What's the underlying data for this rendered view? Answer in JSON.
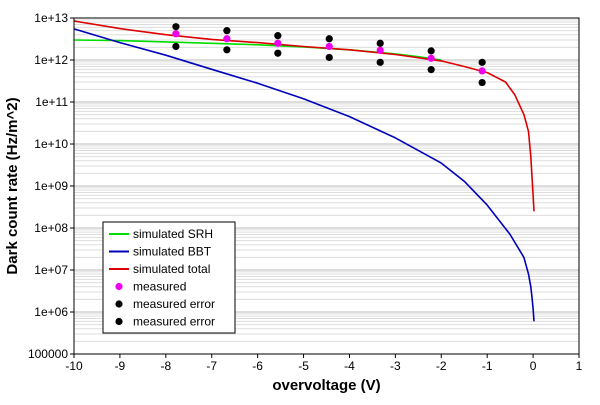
{
  "chart_data": {
    "type": "line",
    "title": "",
    "xlabel": "overvoltage (V)",
    "ylabel": "Dark count rate (Hz/m^2)",
    "xlim": [
      -10,
      1
    ],
    "ylim": [
      100000,
      10000000000000
    ],
    "yscale": "log",
    "grid": true,
    "legend_position": "bottom-left",
    "x_ticks": [
      {
        "value": -10,
        "label": "-10"
      },
      {
        "value": -9,
        "label": "-9"
      },
      {
        "value": -8,
        "label": "-8"
      },
      {
        "value": -7,
        "label": "-7"
      },
      {
        "value": -6,
        "label": "-6"
      },
      {
        "value": -5,
        "label": "-5"
      },
      {
        "value": -4,
        "label": "-4"
      },
      {
        "value": -3,
        "label": "-3"
      },
      {
        "value": -2,
        "label": "-2"
      },
      {
        "value": -1,
        "label": "-1"
      },
      {
        "value": 0,
        "label": "0"
      },
      {
        "value": 1,
        "label": "1"
      }
    ],
    "y_ticks": [
      {
        "value": 100000,
        "label": "100000"
      },
      {
        "value": 1000000,
        "label": "1e+06"
      },
      {
        "value": 10000000,
        "label": "1e+07"
      },
      {
        "value": 100000000,
        "label": "1e+08"
      },
      {
        "value": 1000000000,
        "label": "1e+09"
      },
      {
        "value": 10000000000,
        "label": "1e+10"
      },
      {
        "value": 100000000000,
        "label": "1e+11"
      },
      {
        "value": 1000000000000,
        "label": "1e+12"
      },
      {
        "value": 10000000000000,
        "label": "1e+13"
      }
    ],
    "series": [
      {
        "name": "simulated SRH",
        "kind": "line",
        "color": "#00dd00",
        "x": [
          -10,
          -9,
          -8,
          -7,
          -6,
          -5,
          -4,
          -3,
          -2.5,
          -2
        ],
        "y": [
          3000000000000.0,
          2900000000000.0,
          2700000000000.0,
          2500000000000.0,
          2300000000000.0,
          2050000000000.0,
          1750000000000.0,
          1400000000000.0,
          1200000000000.0,
          1000000000000.0
        ]
      },
      {
        "name": "simulated BBT",
        "kind": "line",
        "color": "#0000bb",
        "x": [
          -10,
          -9,
          -8,
          -7,
          -6,
          -5,
          -4,
          -3,
          -2,
          -1.5,
          -1,
          -0.5,
          -0.2,
          -0.1,
          -0.05,
          -0.02,
          0,
          0.02
        ],
        "y": [
          5500000000000.0,
          2600000000000.0,
          1300000000000.0,
          600000000000.0,
          280000000000.0,
          120000000000.0,
          45000000000.0,
          14000000000.0,
          3500000000.0,
          1300000000.0,
          350000000.0,
          70000000.0,
          20000000.0,
          8000000.0,
          4000000.0,
          2000000.0,
          1200000.0,
          600000.0
        ]
      },
      {
        "name": "simulated total",
        "kind": "line",
        "color": "#dd0000",
        "x": [
          -10,
          -9,
          -8,
          -7,
          -6,
          -5,
          -4,
          -3,
          -2,
          -1.5,
          -1,
          -0.6,
          -0.4,
          -0.2,
          -0.1,
          -0.05,
          0,
          0.02
        ],
        "y": [
          8500000000000.0,
          5600000000000.0,
          4000000000000.0,
          3100000000000.0,
          2600000000000.0,
          2100000000000.0,
          1750000000000.0,
          1350000000000.0,
          950000000000.0,
          700000000000.0,
          500000000000.0,
          300000000000.0,
          150000000000.0,
          50000000000.0,
          20000000000.0,
          5000000000.0,
          600000000.0,
          250000000.0
        ]
      },
      {
        "name": "measured",
        "kind": "scatter",
        "color": "#ee00ee",
        "x": [
          -7.78,
          -6.67,
          -5.56,
          -4.44,
          -3.33,
          -2.22,
          -1.11
        ],
        "y": [
          4200000000000.0,
          3200000000000.0,
          2500000000000.0,
          2100000000000.0,
          1700000000000.0,
          1100000000000.0,
          550000000000.0
        ]
      },
      {
        "name": "measured error",
        "kind": "scatter",
        "color": "#000000",
        "x": [
          -7.78,
          -6.67,
          -5.56,
          -4.44,
          -3.33,
          -2.22,
          -1.11
        ],
        "y": [
          6200000000000.0,
          5000000000000.0,
          3800000000000.0,
          3200000000000.0,
          2500000000000.0,
          1650000000000.0,
          880000000000.0
        ]
      },
      {
        "name": "measured error",
        "kind": "scatter",
        "color": "#000000",
        "x": [
          -7.78,
          -6.67,
          -5.56,
          -4.44,
          -3.33,
          -2.22,
          -1.11
        ],
        "y": [
          2100000000000.0,
          1750000000000.0,
          1450000000000.0,
          1150000000000.0,
          880000000000.0,
          590000000000.0,
          290000000000.0
        ]
      }
    ]
  }
}
